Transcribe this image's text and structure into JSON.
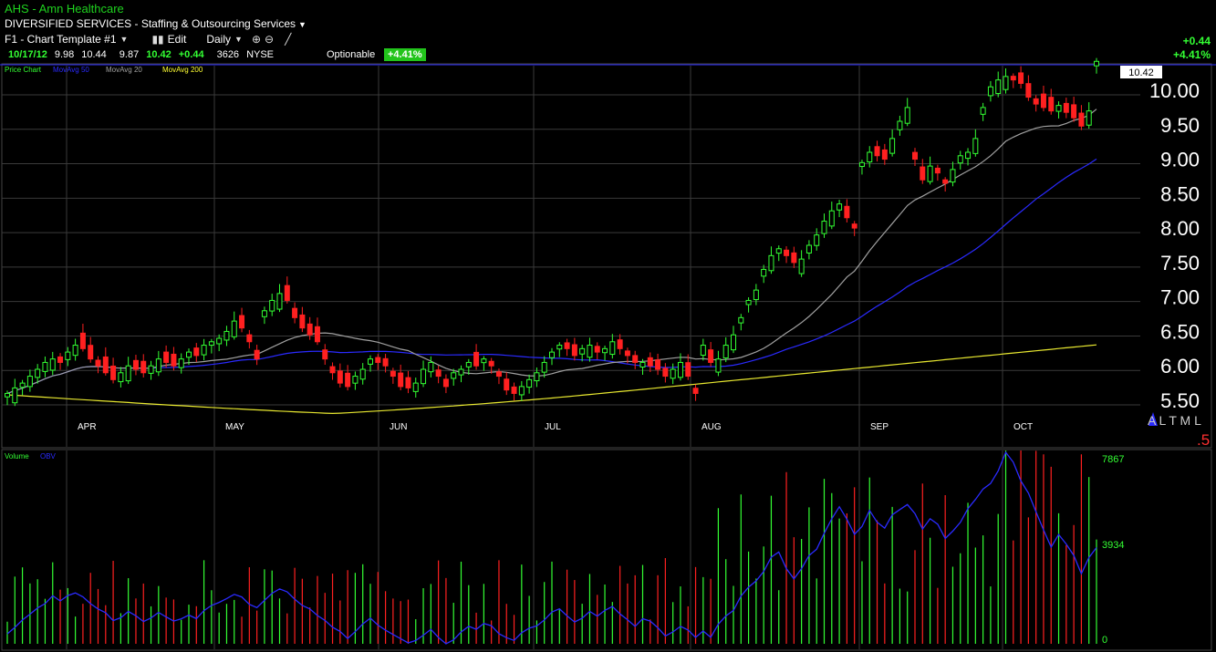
{
  "header": {
    "symbol_line": "AHS  -  Amn Healthcare",
    "sector_line": "DIVERSIFIED SERVICES - Staffing & Outsourcing Services",
    "template": "F1 - Chart Template #1",
    "edit": "Edit",
    "interval": "Daily",
    "optionable": "Optionable",
    "pct_badge": "+4.41%",
    "change_abs": "+0.44",
    "change_pct": "+4.41%"
  },
  "quote": {
    "date": "10/17/12",
    "open": "9.98",
    "high": "10.44",
    "low": "9.87",
    "close": "10.42",
    "change": "+0.44",
    "volume": "3626",
    "exchange": "NYSE"
  },
  "price_panel": {
    "legend": [
      {
        "label": "Price Chart",
        "color": "#33ff33"
      },
      {
        "label": "MovAvg 50",
        "color": "#2a2aff"
      },
      {
        "label": "MovAvg 20",
        "color": "#a0a0a0"
      },
      {
        "label": "MovAvg 200",
        "color": "#ffff33"
      }
    ],
    "last_price_tag": "10.42",
    "y_ticks": [
      "10.00",
      "9.50",
      "9.00",
      "8.50",
      "8.00",
      "7.50",
      "7.00",
      "6.50",
      "6.00",
      "5.50"
    ],
    "months": [
      "APR",
      "MAY",
      "JUN",
      "JUL",
      "AUG",
      "SEP",
      "OCT"
    ],
    "corner_letters": "A L T M L",
    "corner_num": ".5"
  },
  "volume_panel": {
    "legend": [
      {
        "label": "Volume",
        "color": "#33ff33"
      },
      {
        "label": "OBV",
        "color": "#2a2aff"
      }
    ],
    "y_ticks": [
      "7867",
      "3934",
      "0"
    ]
  },
  "chart_data": {
    "type": "candlestick",
    "title": "AHS - Amn Healthcare",
    "interval": "Daily",
    "ylim": [
      5.3,
      10.4
    ],
    "closes": [
      5.6,
      5.68,
      5.75,
      5.85,
      5.95,
      6.05,
      6.1,
      6.05,
      6.2,
      6.3,
      6.25,
      6.1,
      6.0,
      5.9,
      5.8,
      5.9,
      6.0,
      5.95,
      5.9,
      6.0,
      6.1,
      6.05,
      6.0,
      6.1,
      6.2,
      6.15,
      6.3,
      6.35,
      6.4,
      6.5,
      6.65,
      6.55,
      6.35,
      6.1,
      6.8,
      6.95,
      7.05,
      6.95,
      6.7,
      6.55,
      6.45,
      6.35,
      6.1,
      5.9,
      5.75,
      5.7,
      5.85,
      5.95,
      6.1,
      6.05,
      6.0,
      5.85,
      5.7,
      5.68,
      5.75,
      5.95,
      6.05,
      5.85,
      5.7,
      5.9,
      5.95,
      6.05,
      6.0,
      6.1,
      6.0,
      5.85,
      5.65,
      5.6,
      5.7,
      5.8,
      5.9,
      6.05,
      6.2,
      6.3,
      6.25,
      6.15,
      6.25,
      6.3,
      6.2,
      6.25,
      6.35,
      6.25,
      6.15,
      6.05,
      6.05,
      6.0,
      5.95,
      5.85,
      5.95,
      6.05,
      5.85,
      5.6,
      6.3,
      6.05,
      6.1,
      6.3,
      6.45,
      6.7,
      6.95,
      7.1,
      7.4,
      7.6,
      7.7,
      7.6,
      7.5,
      7.55,
      7.75,
      7.9,
      8.1,
      8.25,
      8.35,
      8.15,
      8.0,
      8.95,
      9.1,
      9.05,
      9.0,
      9.3,
      9.55,
      9.75,
      9.0,
      8.7,
      8.9,
      8.8,
      8.65,
      8.85,
      9.05,
      9.1,
      9.3,
      9.75,
      10.05,
      10.15,
      10.2,
      10.15,
      10.1,
      9.9,
      9.8,
      9.75,
      9.7,
      9.78,
      9.68,
      9.6,
      9.48,
      9.7,
      10.42
    ],
    "ma20_end": 9.65,
    "ma50_end": 8.75,
    "ma200_end": 6.48,
    "volume_max": 7867
  }
}
